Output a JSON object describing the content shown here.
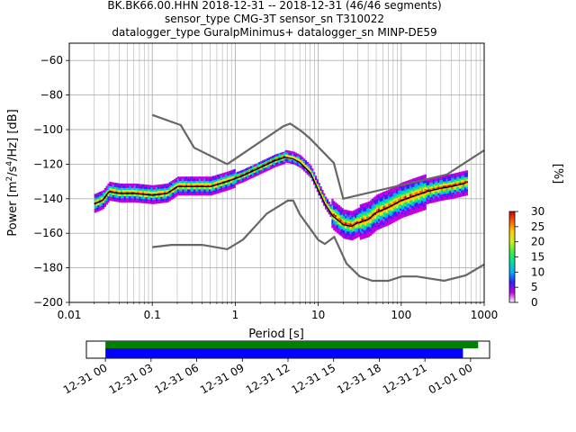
{
  "figure": {
    "title_lines": [
      "BK.BK66.00.HHN   2018-12-31 -- 2018-12-31  (46/46 segments)",
      "sensor_type CMG-3T sensor_sn T310022",
      "datalogger_type GuralpMinimus+ datalogger_sn MINP-DE59"
    ]
  },
  "chart_data": [
    {
      "type": "heatmap",
      "title": "BK.BK66.00.HHN   2018-12-31 -- 2018-12-31  (46/46 segments)",
      "xlabel": "Period [s]",
      "ylabel": "Power [m²/s⁴/Hz] [dB]",
      "ylabel_parts": [
        "Power [m",
        "2",
        "/s",
        "4",
        "/Hz] [dB]"
      ],
      "xscale": "log",
      "xlim": [
        0.01,
        1000
      ],
      "ylim": [
        -200,
        -50
      ],
      "xticks": [
        0.01,
        0.1,
        1,
        10,
        100,
        1000
      ],
      "xtick_labels": [
        "0.01",
        "0.1",
        "1",
        "10",
        "100",
        "1000"
      ],
      "yticks": [
        -200,
        -180,
        -160,
        -140,
        -120,
        -100,
        -80,
        -60
      ],
      "ytick_labels": [
        "−200",
        "−180",
        "−160",
        "−140",
        "−120",
        "−100",
        "−80",
        "−60"
      ],
      "grid": true,
      "colorbar": {
        "label": "[%]",
        "range": [
          0,
          30
        ],
        "ticks": [
          0,
          5,
          10,
          15,
          20,
          25,
          30
        ],
        "colors": [
          "#ffffff",
          "#c000e0",
          "#3020ff",
          "#00b0ff",
          "#00e0a0",
          "#40f040",
          "#d0f020",
          "#ffd000",
          "#ff6000",
          "#d00000"
        ]
      },
      "mode_curve": {
        "color": "#000000",
        "x": [
          0.02,
          0.025,
          0.03,
          0.04,
          0.06,
          0.1,
          0.15,
          0.2,
          0.3,
          0.5,
          0.8,
          1.2,
          2,
          3,
          4,
          5,
          6,
          8,
          10,
          12,
          15,
          20,
          25,
          30,
          40,
          50,
          70,
          100,
          150,
          200,
          300,
          400,
          600
        ],
        "y": [
          -143,
          -141,
          -136,
          -137,
          -137,
          -138,
          -137,
          -133,
          -133,
          -133,
          -130,
          -127,
          -122,
          -118,
          -116,
          -117,
          -119,
          -125,
          -135,
          -143,
          -150,
          -155,
          -156,
          -154,
          -152,
          -148,
          -145,
          -141,
          -138,
          -136,
          -134,
          -133,
          -131
        ]
      },
      "nhnm": {
        "color": "#666666",
        "x": [
          0.1,
          0.22,
          0.32,
          0.8,
          3.8,
          4.6,
          6.3,
          7.9,
          15.4,
          20,
          354.8,
          1000
        ],
        "y": [
          -91.5,
          -97.4,
          -110.5,
          -120,
          -98,
          -96.5,
          -101,
          -105,
          -119.3,
          -140,
          -126,
          -112
        ]
      },
      "nlnm": {
        "color": "#666666",
        "x": [
          0.1,
          0.17,
          0.4,
          0.8,
          1.24,
          2.4,
          4.3,
          5,
          6,
          10,
          12,
          15.6,
          21.9,
          31.6,
          45,
          70,
          101,
          154,
          328,
          600,
          1000
        ],
        "y": [
          -168,
          -166.7,
          -166.7,
          -169.2,
          -163.7,
          -148.6,
          -141.1,
          -141.1,
          -149,
          -163.8,
          -166.2,
          -162.1,
          -177.5,
          -185,
          -187.5,
          -187.5,
          -185,
          -185,
          -187.5,
          -184.4,
          -178
        ]
      }
    },
    {
      "type": "bar",
      "name": "data-coverage",
      "x_tick_labels": [
        "12-31 00",
        "12-31 03",
        "12-31 06",
        "12-31 09",
        "12-31 12",
        "12-31 15",
        "12-31 18",
        "12-31 21",
        "01-01 00"
      ],
      "x_tick_hours": [
        0,
        3,
        6,
        9,
        12,
        15,
        18,
        21,
        24
      ],
      "xlim_hours": [
        -1.25,
        25.25
      ],
      "series": [
        {
          "color": "#008000",
          "start_hour": 0,
          "end_hour": 24.5
        },
        {
          "color": "#0000ff",
          "start_hour": 0,
          "end_hour": 23.5
        }
      ]
    }
  ]
}
